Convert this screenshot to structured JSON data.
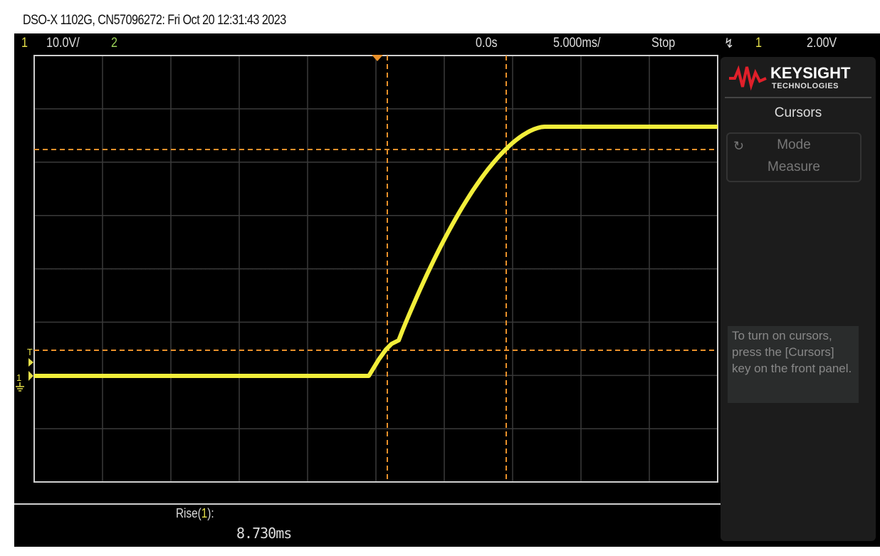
{
  "header": {
    "title": "DSO-X 1102G, CN57096272: Fri Oct 20 12:31:43 2023"
  },
  "topbar": {
    "channel1": "1",
    "channel1_scale": "10.0V/",
    "channel2": "2",
    "time_offset": "0.0s",
    "time_scale": "5.000ms/",
    "run_state": "Stop",
    "trigger_slope_icon": "rising-edge-icon",
    "trigger_source": "1",
    "trigger_level": "2.00V"
  },
  "panel": {
    "brand": "KEYSIGHT",
    "brand_sub": "TECHNOLOGIES",
    "title": "Cursors",
    "mode_label": "Mode",
    "mode_value": "Measure",
    "info_text": "To turn on cursors, press the [Cursors] key on the front panel."
  },
  "markers": {
    "trigger_level_marker": "T",
    "channel_marker": "1"
  },
  "measurement": {
    "label_prefix": "Rise(",
    "label_channel": "1",
    "label_suffix": "):",
    "value": "8.730ms"
  },
  "colors": {
    "trace": "#f2ee3a",
    "cursor": "#e8902a",
    "grid": "#3a3a3a",
    "background": "#000000"
  }
}
